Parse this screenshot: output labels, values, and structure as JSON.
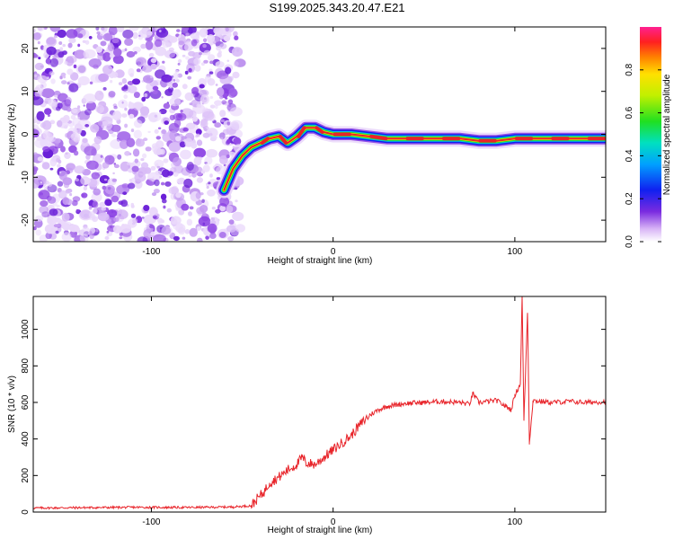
{
  "title": "S199.2025.343.20.47.E21",
  "colors": {
    "snr_line": "#e8242a",
    "noise_purple": "#7a2be0",
    "track_red": "#e8242a"
  },
  "chart_data": [
    {
      "type": "heatmap",
      "title": "S199.2025.343.20.47.E21",
      "xlabel": "Height of straight line (km)",
      "ylabel": "Frequency (Hz)",
      "xlim": [
        -165,
        150
      ],
      "ylim": [
        -25,
        25
      ],
      "x_ticks": [
        -100,
        0,
        100
      ],
      "x_tick_labels": [
        "-100",
        "0",
        "100"
      ],
      "y_ticks": [
        -20,
        -10,
        0,
        10,
        20
      ],
      "y_tick_labels": [
        "-20",
        "-10",
        "0",
        "10",
        "20"
      ],
      "noise_region_x": [
        -165,
        -53
      ],
      "track": {
        "x": [
          -60,
          -55,
          -50,
          -45,
          -40,
          -35,
          -30,
          -25,
          -20,
          -15,
          -10,
          -5,
          0,
          10,
          20,
          30,
          40,
          50,
          60,
          70,
          80,
          90,
          100,
          110,
          120,
          130,
          140,
          150
        ],
        "y": [
          -13,
          -8,
          -5,
          -3,
          -2,
          -1,
          -0.5,
          -2,
          -0.5,
          1.5,
          1.5,
          0.5,
          0,
          0,
          -0.5,
          -1,
          -1,
          -1,
          -1,
          -1,
          -1.5,
          -1.5,
          -1,
          -1,
          -1,
          -1,
          -1,
          -1
        ]
      },
      "colorbar": {
        "label": "Normalized spectral amplitude",
        "range": [
          0,
          1
        ],
        "ticks": [
          0.0,
          0.2,
          0.4,
          0.6,
          0.8
        ],
        "tick_labels": [
          "0.0",
          "0.2",
          "0.4",
          "0.6",
          "0.8"
        ]
      }
    },
    {
      "type": "line",
      "xlabel": "Height of straight line (km)",
      "ylabel": "SNR (10 * v/v)",
      "xlim": [
        -165,
        150
      ],
      "ylim": [
        0,
        1180
      ],
      "x_ticks": [
        -100,
        0,
        100
      ],
      "x_tick_labels": [
        "-100",
        "0",
        "100"
      ],
      "y_ticks": [
        0,
        200,
        400,
        600,
        800,
        1000
      ],
      "y_tick_labels": [
        "0",
        "200",
        "400",
        "600",
        "800",
        "1000"
      ],
      "series": [
        {
          "name": "SNR",
          "x": [
            -165,
            -140,
            -110,
            -80,
            -55,
            -45,
            -42,
            -38,
            -35,
            -30,
            -25,
            -20,
            -17,
            -15,
            -10,
            -5,
            0,
            5,
            10,
            15,
            20,
            25,
            30,
            40,
            50,
            60,
            70,
            75,
            77,
            80,
            90,
            98,
            100,
            103,
            104,
            105,
            106,
            107,
            108,
            110,
            120,
            130,
            140,
            150
          ],
          "y": [
            22,
            24,
            26,
            25,
            28,
            35,
            70,
            110,
            160,
            190,
            230,
            260,
            300,
            270,
            260,
            300,
            340,
            380,
            420,
            480,
            530,
            560,
            580,
            595,
            600,
            605,
            600,
            590,
            650,
            600,
            610,
            560,
            640,
            700,
            1180,
            500,
            800,
            1090,
            380,
            610,
            600,
            605,
            600,
            605
          ]
        }
      ]
    }
  ]
}
